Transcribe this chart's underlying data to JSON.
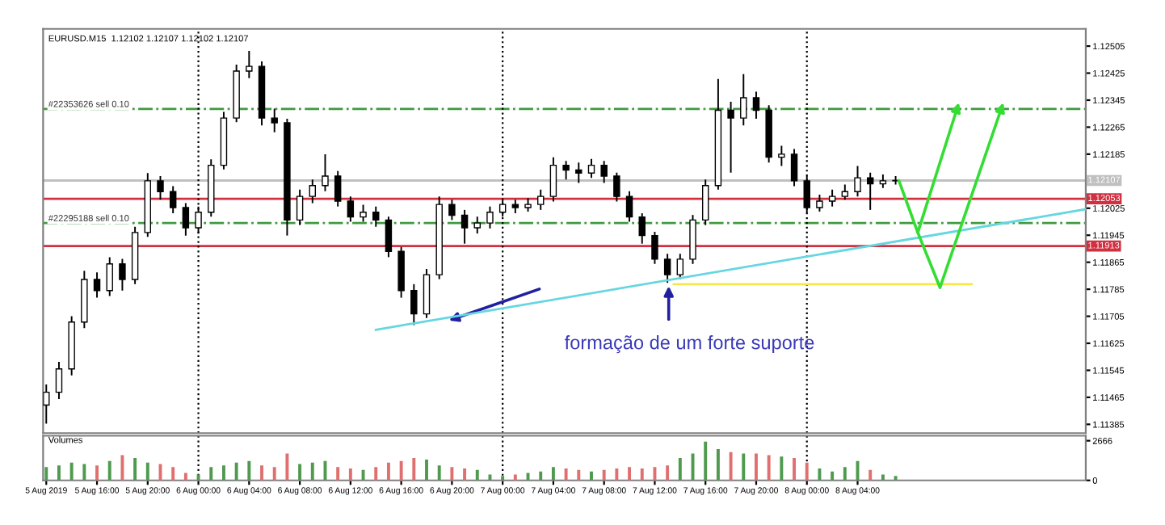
{
  "chart_data": [
    {
      "type": "candlestick",
      "title": "EURUSD.M15  1.12102 1.12107 1.12102 1.12107",
      "x": [
        "2019-08-05T12:00",
        "2019-08-05T13:00",
        "2019-08-05T14:00",
        "2019-08-05T15:00",
        "2019-08-05T16:00",
        "2019-08-05T17:00",
        "2019-08-05T18:00",
        "2019-08-05T19:00",
        "2019-08-05T20:00",
        "2019-08-05T21:00",
        "2019-08-05T22:00",
        "2019-08-05T23:00",
        "2019-08-06T00:00",
        "2019-08-06T01:00",
        "2019-08-06T02:00",
        "2019-08-06T03:00",
        "2019-08-06T04:00",
        "2019-08-06T05:00",
        "2019-08-06T06:00",
        "2019-08-06T07:00",
        "2019-08-06T08:00",
        "2019-08-06T09:00",
        "2019-08-06T10:00",
        "2019-08-06T11:00",
        "2019-08-06T12:00",
        "2019-08-06T13:00",
        "2019-08-06T14:00",
        "2019-08-06T15:00",
        "2019-08-06T16:00",
        "2019-08-06T17:00",
        "2019-08-06T18:00",
        "2019-08-06T19:00",
        "2019-08-06T20:00",
        "2019-08-06T21:00",
        "2019-08-06T22:00",
        "2019-08-06T23:00",
        "2019-08-07T00:00",
        "2019-08-07T01:00",
        "2019-08-07T02:00",
        "2019-08-07T03:00",
        "2019-08-07T04:00",
        "2019-08-07T05:00",
        "2019-08-07T06:00",
        "2019-08-07T07:00",
        "2019-08-07T08:00",
        "2019-08-07T09:00",
        "2019-08-07T10:00",
        "2019-08-07T11:00",
        "2019-08-07T12:00",
        "2019-08-07T13:00",
        "2019-08-07T14:00",
        "2019-08-07T15:00",
        "2019-08-07T16:00",
        "2019-08-07T17:00",
        "2019-08-07T18:00",
        "2019-08-07T19:00",
        "2019-08-07T20:00",
        "2019-08-07T21:00",
        "2019-08-07T22:00",
        "2019-08-07T23:00",
        "2019-08-08T00:00",
        "2019-08-08T01:00",
        "2019-08-08T02:00",
        "2019-08-08T03:00",
        "2019-08-08T04:00",
        "2019-08-08T05:00",
        "2019-08-08T06:00",
        "2019-08-08T07:00"
      ],
      "ohlc": [
        [
          1.11442,
          1.11503,
          1.11387,
          1.1148
        ],
        [
          1.1148,
          1.1157,
          1.1146,
          1.11549
        ],
        [
          1.11549,
          1.11705,
          1.1153,
          1.11688
        ],
        [
          1.11688,
          1.1184,
          1.1167,
          1.11814
        ],
        [
          1.11814,
          1.11835,
          1.1176,
          1.11781
        ],
        [
          1.11781,
          1.1188,
          1.11765,
          1.1186
        ],
        [
          1.1186,
          1.11875,
          1.11781,
          1.11814
        ],
        [
          1.11814,
          1.1197,
          1.118,
          1.11953
        ],
        [
          1.11953,
          1.12129,
          1.1194,
          1.12106
        ],
        [
          1.12106,
          1.1212,
          1.1205,
          1.12074
        ],
        [
          1.12074,
          1.1209,
          1.1201,
          1.12027
        ],
        [
          1.12027,
          1.1204,
          1.11944,
          1.11967
        ],
        [
          1.11967,
          1.1203,
          1.1195,
          1.12013
        ],
        [
          1.12013,
          1.1217,
          1.12,
          1.12152
        ],
        [
          1.12152,
          1.1231,
          1.1214,
          1.12292
        ],
        [
          1.12292,
          1.1245,
          1.1228,
          1.12431
        ],
        [
          1.12431,
          1.12491,
          1.1241,
          1.12445
        ],
        [
          1.12445,
          1.1246,
          1.1227,
          1.12292
        ],
        [
          1.12292,
          1.1232,
          1.1225,
          1.12278
        ],
        [
          1.12278,
          1.1229,
          1.11944,
          1.1199
        ],
        [
          1.1199,
          1.1208,
          1.11975,
          1.1206
        ],
        [
          1.1206,
          1.1211,
          1.1204,
          1.12092
        ],
        [
          1.12092,
          1.12185,
          1.12075,
          1.1212
        ],
        [
          1.1212,
          1.12135,
          1.1203,
          1.12046
        ],
        [
          1.12046,
          1.1206,
          1.11985,
          1.11999
        ],
        [
          1.11999,
          1.12035,
          1.11985,
          1.12013
        ],
        [
          1.12013,
          1.1203,
          1.1197,
          1.1199
        ],
        [
          1.1199,
          1.12,
          1.1188,
          1.11897
        ],
        [
          1.11897,
          1.1191,
          1.1176,
          1.11781
        ],
        [
          1.11781,
          1.118,
          1.11679,
          1.11712
        ],
        [
          1.11712,
          1.11845,
          1.117,
          1.11828
        ],
        [
          1.11828,
          1.1206,
          1.11815,
          1.12036
        ],
        [
          1.12036,
          1.1205,
          1.1199,
          1.12004
        ],
        [
          1.12004,
          1.1202,
          1.1192,
          1.11967
        ],
        [
          1.11967,
          1.12,
          1.1195,
          1.11981
        ],
        [
          1.11981,
          1.1203,
          1.11965,
          1.12013
        ],
        [
          1.12013,
          1.1205,
          1.12,
          1.12036
        ],
        [
          1.12036,
          1.1205,
          1.1201,
          1.12027
        ],
        [
          1.12027,
          1.12055,
          1.12015,
          1.12036
        ],
        [
          1.12036,
          1.1208,
          1.1202,
          1.1206
        ],
        [
          1.1206,
          1.12176,
          1.12045,
          1.12152
        ],
        [
          1.12152,
          1.12165,
          1.1211,
          1.12138
        ],
        [
          1.12138,
          1.1216,
          1.121,
          1.12129
        ],
        [
          1.12129,
          1.12171,
          1.12115,
          1.12152
        ],
        [
          1.12152,
          1.12165,
          1.121,
          1.1212
        ],
        [
          1.1212,
          1.1213,
          1.12045,
          1.1206
        ],
        [
          1.1206,
          1.12075,
          1.11985,
          1.11999
        ],
        [
          1.11999,
          1.1201,
          1.1192,
          1.11944
        ],
        [
          1.11944,
          1.11955,
          1.1186,
          1.11874
        ],
        [
          1.11874,
          1.1189,
          1.11804,
          1.11828
        ],
        [
          1.11828,
          1.1189,
          1.11815,
          1.11874
        ],
        [
          1.11874,
          1.12005,
          1.1186,
          1.1199
        ],
        [
          1.1199,
          1.1211,
          1.11975,
          1.12092
        ],
        [
          1.12092,
          1.12408,
          1.1208,
          1.12315
        ],
        [
          1.12315,
          1.1234,
          1.1213,
          1.12292
        ],
        [
          1.12292,
          1.12422,
          1.1227,
          1.12352
        ],
        [
          1.12352,
          1.1237,
          1.1229,
          1.12315
        ],
        [
          1.12315,
          1.1233,
          1.1216,
          1.12176
        ],
        [
          1.12176,
          1.1221,
          1.1215,
          1.12185
        ],
        [
          1.12185,
          1.122,
          1.1209,
          1.12106
        ],
        [
          1.12106,
          1.1212,
          1.1201,
          1.12027
        ],
        [
          1.12027,
          1.12065,
          1.12015,
          1.12046
        ],
        [
          1.12046,
          1.1208,
          1.1203,
          1.1206
        ],
        [
          1.1206,
          1.12095,
          1.1205,
          1.12074
        ],
        [
          1.12074,
          1.1215,
          1.1206,
          1.12115
        ],
        [
          1.12115,
          1.1213,
          1.1202,
          1.12097
        ],
        [
          1.12097,
          1.12125,
          1.12085,
          1.12106
        ],
        [
          1.12106,
          1.1212,
          1.12095,
          1.12107
        ]
      ],
      "series": [
        {
          "type": "line",
          "color": "#66d6e0",
          "x": [
            "2019-08-06T14:00",
            "2019-08-08T22:00"
          ],
          "values": [
            1.11665,
            1.12022
          ]
        },
        {
          "type": "line",
          "color": "#f2e84a",
          "x": [
            "2019-08-07T13:30",
            "2019-08-08T13:00"
          ],
          "values": [
            1.118,
            1.118
          ]
        }
      ],
      "ref_lines": [
        {
          "axis": "y",
          "value": 1.12319,
          "label": "#22353626 sell 0.10",
          "color": "#3f9a3f",
          "line_style": "dashdot"
        },
        {
          "axis": "y",
          "value": 1.11981,
          "label": "#22295188 sell 0.10",
          "color": "#3f9a3f",
          "line_style": "dashdot"
        },
        {
          "axis": "y",
          "value": 1.12107,
          "label": "1.12107",
          "color": "#c0c0c0",
          "line_style": "solid"
        },
        {
          "axis": "y",
          "value": 1.12053,
          "label": "1.12053",
          "color": "#d03040",
          "line_style": "solid"
        },
        {
          "axis": "y",
          "value": 1.11913,
          "label": "1.11913",
          "color": "#d03040",
          "line_style": "solid"
        },
        {
          "axis": "x",
          "value": "2019-08-06T00:00",
          "label": null,
          "color": "#000000",
          "line_style": "dotted"
        },
        {
          "axis": "x",
          "value": "2019-08-07T00:00",
          "label": null,
          "color": "#000000",
          "line_style": "dotted"
        },
        {
          "axis": "x",
          "value": "2019-08-08T00:00",
          "label": null,
          "color": "#000000",
          "line_style": "dotted"
        }
      ],
      "annotations": [
        "formação de um forte suporte"
      ],
      "xlim": [
        "2019-08-05T11:45",
        "2019-08-08T22:00"
      ],
      "ylim": [
        1.11359,
        1.12556
      ],
      "yticks": [
        1.12505,
        1.12425,
        1.12345,
        1.12265,
        1.12185,
        1.12025,
        1.11945,
        1.11865,
        1.11785,
        1.11705,
        1.11625,
        1.11545,
        1.11465,
        1.11385
      ],
      "tick_labels": "y"
    },
    {
      "type": "bar",
      "title": "Volumes",
      "x": [
        "2019-08-05T12:00",
        "2019-08-05T13:00",
        "2019-08-05T14:00",
        "2019-08-05T15:00",
        "2019-08-05T16:00",
        "2019-08-05T17:00",
        "2019-08-05T18:00",
        "2019-08-05T19:00",
        "2019-08-05T20:00",
        "2019-08-05T21:00",
        "2019-08-05T22:00",
        "2019-08-05T23:00",
        "2019-08-06T00:00",
        "2019-08-06T01:00",
        "2019-08-06T02:00",
        "2019-08-06T03:00",
        "2019-08-06T04:00",
        "2019-08-06T05:00",
        "2019-08-06T06:00",
        "2019-08-06T07:00",
        "2019-08-06T08:00",
        "2019-08-06T09:00",
        "2019-08-06T10:00",
        "2019-08-06T11:00",
        "2019-08-06T12:00",
        "2019-08-06T13:00",
        "2019-08-06T14:00",
        "2019-08-06T15:00",
        "2019-08-06T16:00",
        "2019-08-06T17:00",
        "2019-08-06T18:00",
        "2019-08-06T19:00",
        "2019-08-06T20:00",
        "2019-08-06T21:00",
        "2019-08-06T22:00",
        "2019-08-06T23:00",
        "2019-08-07T00:00",
        "2019-08-07T01:00",
        "2019-08-07T02:00",
        "2019-08-07T03:00",
        "2019-08-07T04:00",
        "2019-08-07T05:00",
        "2019-08-07T06:00",
        "2019-08-07T07:00",
        "2019-08-07T08:00",
        "2019-08-07T09:00",
        "2019-08-07T10:00",
        "2019-08-07T11:00",
        "2019-08-07T12:00",
        "2019-08-07T13:00",
        "2019-08-07T14:00",
        "2019-08-07T15:00",
        "2019-08-07T16:00",
        "2019-08-07T17:00",
        "2019-08-07T18:00",
        "2019-08-07T19:00",
        "2019-08-07T20:00",
        "2019-08-07T21:00",
        "2019-08-07T22:00",
        "2019-08-07T23:00",
        "2019-08-08T00:00",
        "2019-08-08T01:00",
        "2019-08-08T02:00",
        "2019-08-08T03:00",
        "2019-08-08T04:00",
        "2019-08-08T05:00",
        "2019-08-08T06:00",
        "2019-08-08T07:00"
      ],
      "values": [
        900,
        1000,
        1200,
        1100,
        1000,
        1300,
        1700,
        1500,
        1200,
        1100,
        900,
        500,
        400,
        900,
        1000,
        1200,
        1300,
        1000,
        900,
        1800,
        1100,
        1200,
        1300,
        900,
        800,
        700,
        900,
        1200,
        1300,
        1500,
        1400,
        1000,
        900,
        800,
        700,
        400,
        300,
        400,
        500,
        600,
        900,
        800,
        700,
        600,
        700,
        800,
        900,
        800,
        900,
        1000,
        1500,
        1800,
        2600,
        2100,
        1900,
        1800,
        1800,
        1700,
        1600,
        1500,
        1200,
        800,
        600,
        900,
        1300,
        700,
        400,
        300
      ],
      "colors": [
        "#4f9a4f",
        "#4f9a4f",
        "#4f9a4f",
        "#4f9a4f",
        "#e07070",
        "#4f9a4f",
        "#e07070",
        "#4f9a4f",
        "#4f9a4f",
        "#e07070",
        "#e07070",
        "#e07070",
        "#4f9a4f",
        "#4f9a4f",
        "#4f9a4f",
        "#4f9a4f",
        "#4f9a4f",
        "#e07070",
        "#e07070",
        "#e07070",
        "#4f9a4f",
        "#4f9a4f",
        "#4f9a4f",
        "#e07070",
        "#e07070",
        "#4f9a4f",
        "#e07070",
        "#e07070",
        "#e07070",
        "#e07070",
        "#4f9a4f",
        "#4f9a4f",
        "#e07070",
        "#e07070",
        "#4f9a4f",
        "#4f9a4f",
        "#4f9a4f",
        "#e07070",
        "#4f9a4f",
        "#4f9a4f",
        "#4f9a4f",
        "#e07070",
        "#e07070",
        "#4f9a4f",
        "#e07070",
        "#e07070",
        "#e07070",
        "#e07070",
        "#e07070",
        "#e07070",
        "#4f9a4f",
        "#4f9a4f",
        "#4f9a4f",
        "#4f9a4f",
        "#e07070",
        "#4f9a4f",
        "#e07070",
        "#e07070",
        "#4f9a4f",
        "#e07070",
        "#e07070",
        "#4f9a4f",
        "#4f9a4f",
        "#4f9a4f",
        "#4f9a4f",
        "#e07070",
        "#4f9a4f",
        "#4f9a4f"
      ],
      "ref_lines": [
        {
          "axis": "x",
          "value": "2019-08-06T00:00",
          "label": null,
          "color": "#000000",
          "line_style": "dotted"
        },
        {
          "axis": "x",
          "value": "2019-08-07T00:00",
          "label": null,
          "color": "#000000",
          "line_style": "dotted"
        },
        {
          "axis": "x",
          "value": "2019-08-08T00:00",
          "label": null,
          "color": "#000000",
          "line_style": "dotted"
        }
      ],
      "xlim": [
        "2019-08-05T11:45",
        "2019-08-08T22:00"
      ],
      "xticks": [
        {
          "value": "2019-08-05T12:00",
          "label": "5 Aug 2019"
        },
        {
          "value": "2019-08-05T16:00",
          "label": "5 Aug 16:00"
        },
        {
          "value": "2019-08-05T20:00",
          "label": "5 Aug 20:00"
        },
        {
          "value": "2019-08-06T00:00",
          "label": "6 Aug 00:00"
        },
        {
          "value": "2019-08-06T04:00",
          "label": "6 Aug 04:00"
        },
        {
          "value": "2019-08-06T08:00",
          "label": "6 Aug 08:00"
        },
        {
          "value": "2019-08-06T12:00",
          "label": "6 Aug 12:00"
        },
        {
          "value": "2019-08-06T16:00",
          "label": "6 Aug 16:00"
        },
        {
          "value": "2019-08-06T20:00",
          "label": "6 Aug 20:00"
        },
        {
          "value": "2019-08-07T00:00",
          "label": "7 Aug 00:00"
        },
        {
          "value": "2019-08-07T04:00",
          "label": "7 Aug 04:00"
        },
        {
          "value": "2019-08-07T08:00",
          "label": "7 Aug 08:00"
        },
        {
          "value": "2019-08-07T12:00",
          "label": "7 Aug 12:00"
        },
        {
          "value": "2019-08-07T16:00",
          "label": "7 Aug 16:00"
        },
        {
          "value": "2019-08-07T20:00",
          "label": "7 Aug 20:00"
        },
        {
          "value": "2019-08-08T00:00",
          "label": "8 Aug 00:00"
        },
        {
          "value": "2019-08-08T04:00",
          "label": "8 Aug 04:00"
        }
      ],
      "ylim": [
        0,
        3000
      ],
      "yticks": [
        0,
        2666
      ]
    }
  ]
}
